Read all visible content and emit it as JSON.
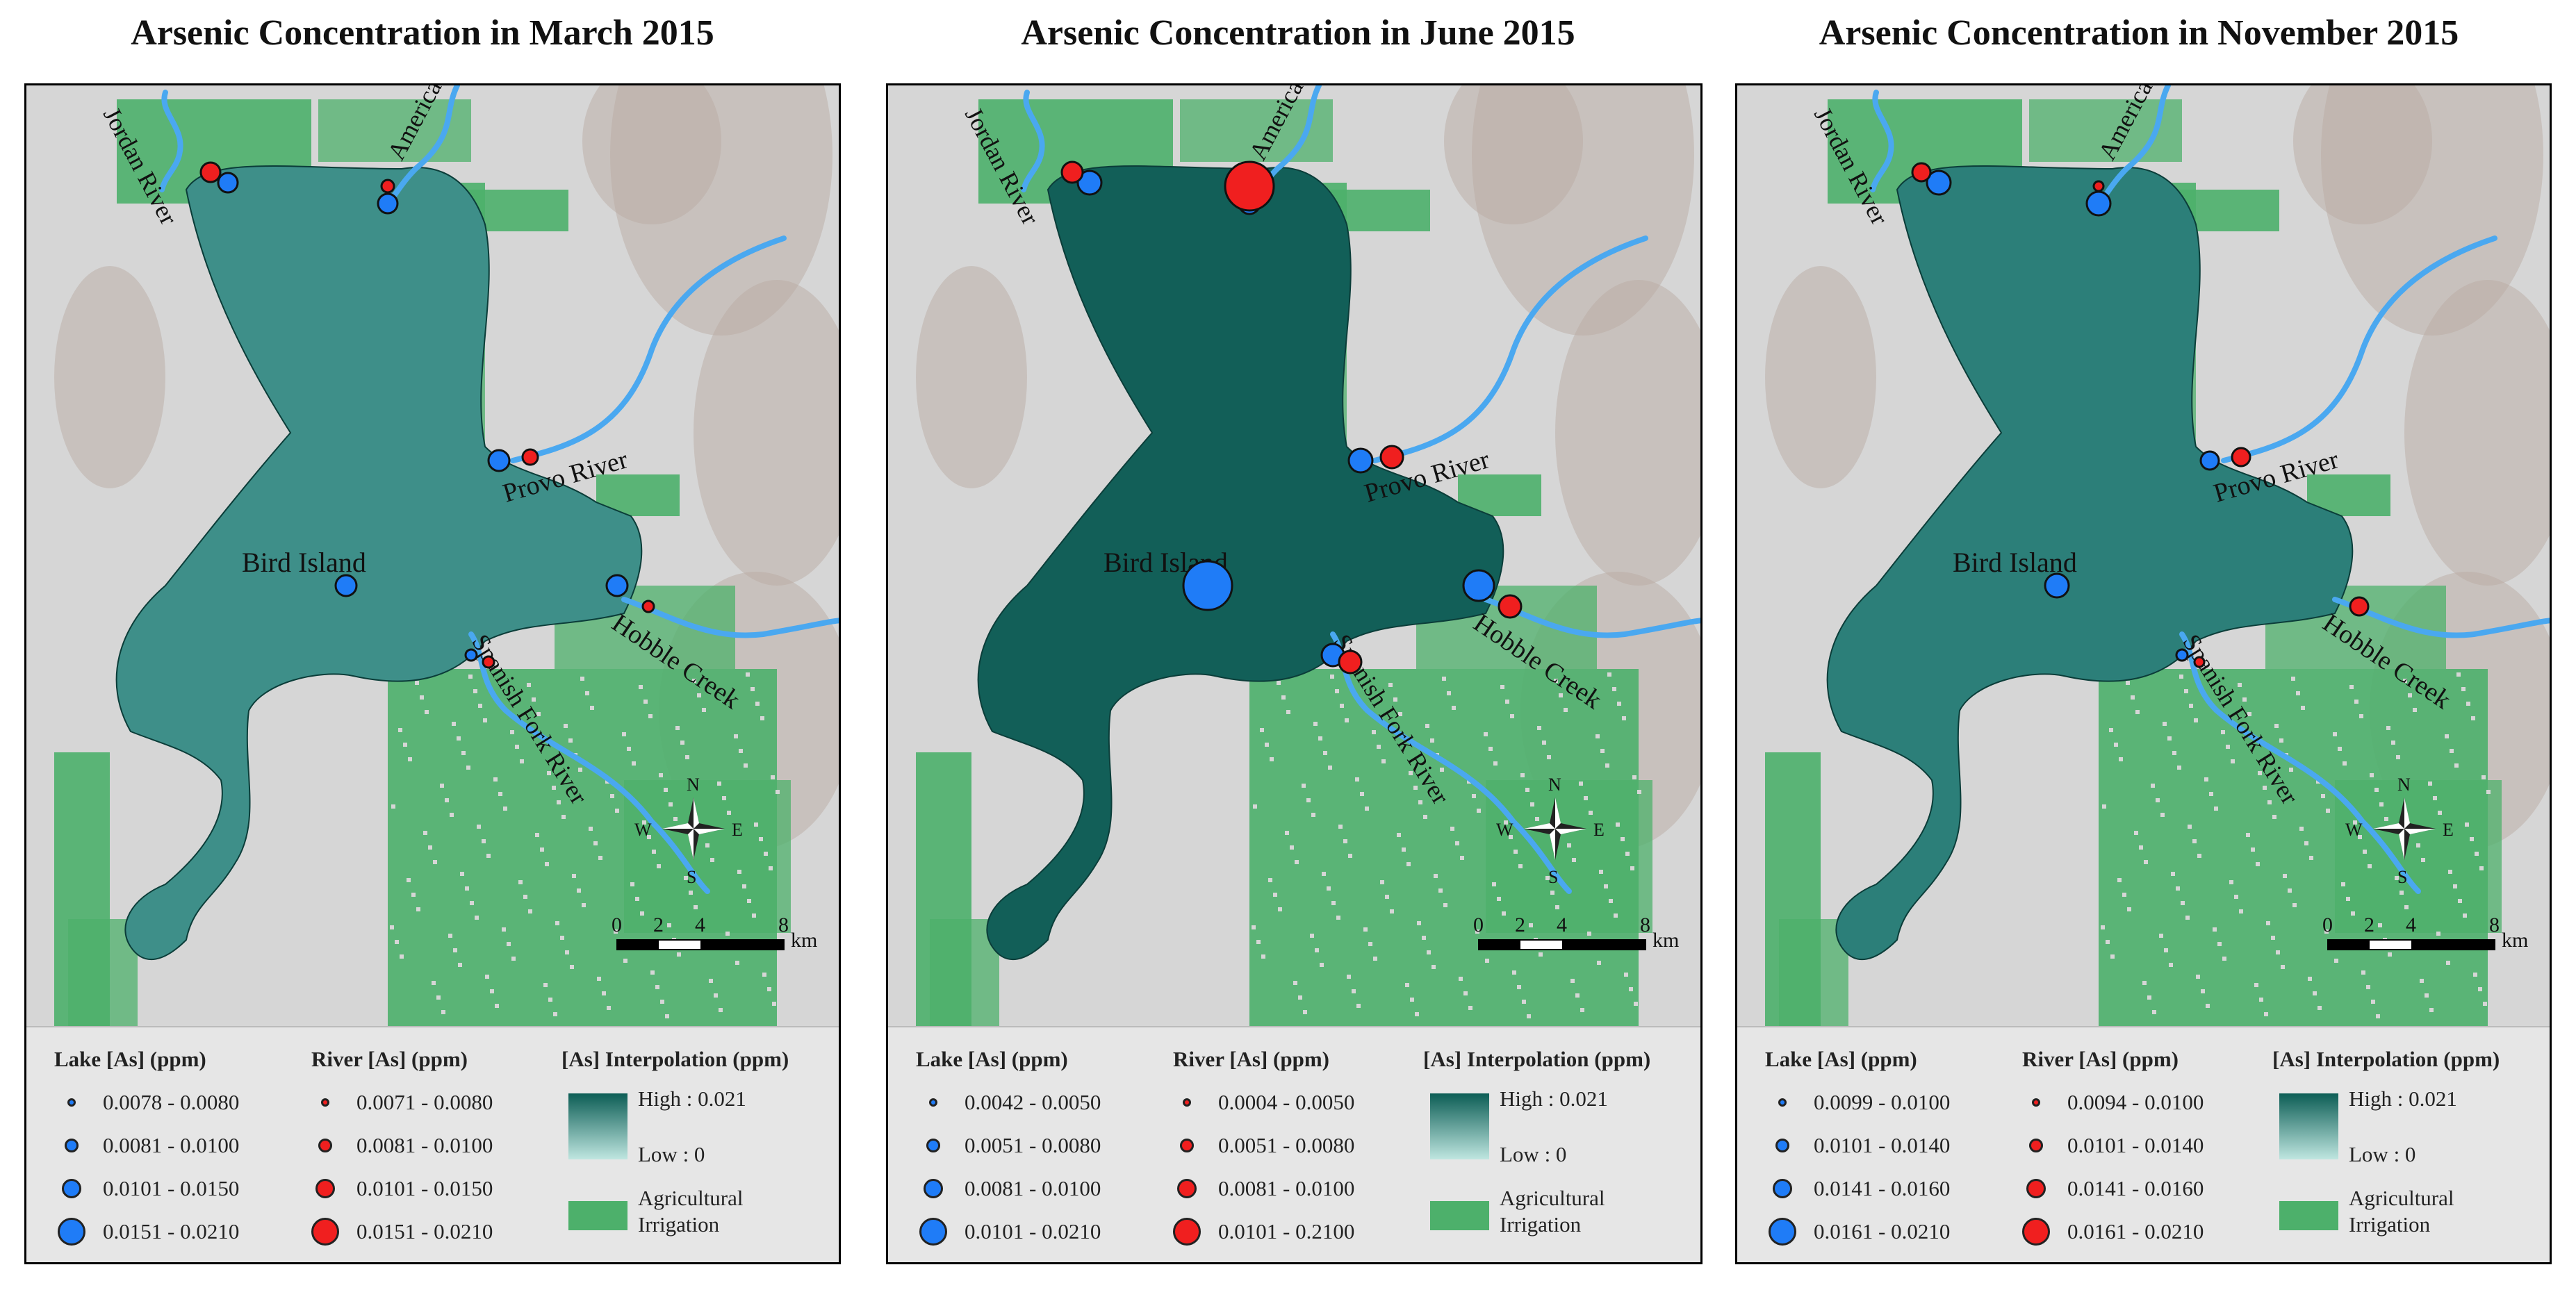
{
  "colors": {
    "lake_marker": "#1f7cf7",
    "river_marker": "#f01f1f",
    "river_line": "#4aa8f0",
    "agriculture": "#4db06b",
    "terrain": "#d6d6d6",
    "interp_high": "#0c5d55",
    "interp_low": "#bfe6e0"
  },
  "icons": [
    "north-arrow-icon",
    "scale-bar-icon"
  ],
  "panels": [
    {
      "title": "Arsenic Concentration in March 2015",
      "lake_fill": "#3e8f89",
      "place_labels": {
        "jordan": "Jordan River",
        "american": "American Fork River",
        "provo": "Provo River",
        "bird": "Bird Island",
        "hobble": "Hobble Creek",
        "spanish": "Spanish Fork River"
      },
      "compass": {
        "n": "N",
        "s": "S",
        "e": "E",
        "w": "W"
      },
      "scale": {
        "ticks": [
          "0",
          "2",
          "4",
          "8"
        ],
        "unit": "km"
      },
      "legend": {
        "lake_title": "Lake [As] (ppm)",
        "river_title": "River [As] (ppm)",
        "interp_title": "[As] Interpolation (ppm)",
        "lake_classes": [
          "0.0078 - 0.0080",
          "0.0081 - 0.0100",
          "0.0101 - 0.0150",
          "0.0151 - 0.0210"
        ],
        "river_classes": [
          "0.0071 - 0.0080",
          "0.0081 - 0.0100",
          "0.0101 - 0.0150",
          "0.0151 - 0.0210"
        ],
        "high": "High : 0.021",
        "low": "Low : 0",
        "ag_label_1": "Agricultural",
        "ag_label_2": "Irrigation"
      }
    },
    {
      "title": "Arsenic Concentration in June 2015",
      "lake_fill": "#125f58",
      "place_labels": {
        "jordan": "Jordan River",
        "american": "American Fork River",
        "provo": "Provo River",
        "bird": "Bird Island",
        "hobble": "Hobble Creek",
        "spanish": "Spanish Fork River"
      },
      "compass": {
        "n": "N",
        "s": "S",
        "e": "E",
        "w": "W"
      },
      "scale": {
        "ticks": [
          "0",
          "2",
          "4",
          "8"
        ],
        "unit": "km"
      },
      "legend": {
        "lake_title": "Lake [As] (ppm)",
        "river_title": "River [As] (ppm)",
        "interp_title": "[As] Interpolation (ppm)",
        "lake_classes": [
          "0.0042 - 0.0050",
          "0.0051 - 0.0080",
          "0.0081 - 0.0100",
          "0.0101 - 0.0210"
        ],
        "river_classes": [
          "0.0004 - 0.0050",
          "0.0051 - 0.0080",
          "0.0081 - 0.0100",
          "0.0101 - 0.2100"
        ],
        "high": "High : 0.021",
        "low": "Low : 0",
        "ag_label_1": "Agricultural",
        "ag_label_2": "Irrigation"
      }
    },
    {
      "title": "Arsenic Concentration in November 2015",
      "lake_fill": "#2c7f79",
      "place_labels": {
        "jordan": "Jordan River",
        "american": "American Fork River",
        "provo": "Provo River",
        "bird": "Bird Island",
        "hobble": "Hobble Creek",
        "spanish": "Spanish Fork River"
      },
      "compass": {
        "n": "N",
        "s": "S",
        "e": "E",
        "w": "W"
      },
      "scale": {
        "ticks": [
          "0",
          "2",
          "4",
          "8"
        ],
        "unit": "km"
      },
      "legend": {
        "lake_title": "Lake [As] (ppm)",
        "river_title": "River [As] (ppm)",
        "interp_title": "[As] Interpolation (ppm)",
        "lake_classes": [
          "0.0099 - 0.0100",
          "0.0101 - 0.0140",
          "0.0141 - 0.0160",
          "0.0161 - 0.0210"
        ],
        "river_classes": [
          "0.0094 - 0.0100",
          "0.0101 - 0.0140",
          "0.0141 - 0.0160",
          "0.0161 - 0.0210"
        ],
        "high": "High : 0.021",
        "low": "Low : 0",
        "ag_label_1": "Agricultural",
        "ag_label_2": "Irrigation"
      }
    }
  ]
}
